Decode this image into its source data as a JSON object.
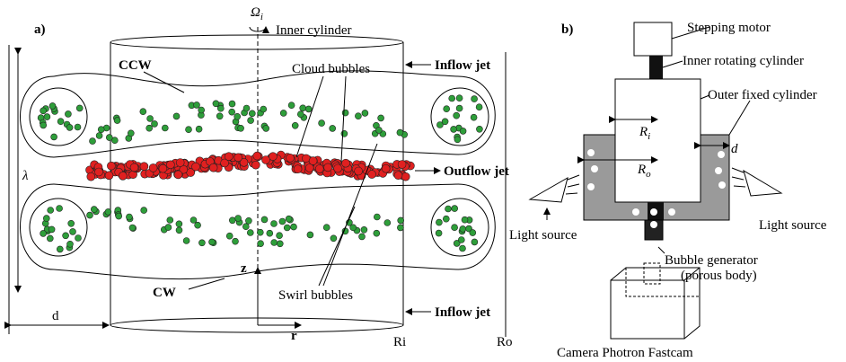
{
  "panel_a": {
    "label": "a)",
    "omega": {
      "symbol": "Ω",
      "sub": "i"
    },
    "inner_cylinder": "Inner cylinder",
    "ccw": "CCW",
    "inflow_jet_top": "Inflow jet",
    "cloud_bubbles": "Cloud bubbles",
    "lambda": "λ",
    "outflow_jet": "Outflow jet",
    "z": "z",
    "cw": "CW",
    "swirl_bubbles": "Swirl bubbles",
    "inflow_jet_bottom": "Inflow jet",
    "d": "d",
    "r": "r",
    "ri": "Ri",
    "ro": "Ro"
  },
  "panel_b": {
    "label": "b)",
    "stepping_motor": "Stepping motor",
    "inner_rotating_cylinder": "Inner rotating cylinder",
    "outer_fixed_cylinder": "Outer fixed cylinder",
    "r_i": {
      "symbol": "R",
      "sub": "i"
    },
    "r_o": {
      "symbol": "R",
      "sub": "o"
    },
    "d": "d",
    "light_source_left": "Light source",
    "light_source_right": "Light source",
    "bubble_generator": "Bubble generator",
    "porous_body": "(porous body)",
    "camera": "Camera Photron Fastcam"
  }
}
